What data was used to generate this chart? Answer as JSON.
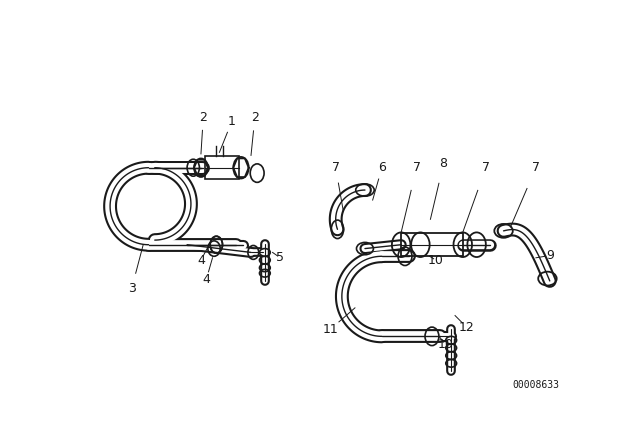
{
  "background_color": "#ffffff",
  "line_color": "#1a1a1a",
  "diagram_id": "00008633",
  "fig_width": 6.4,
  "fig_height": 4.48,
  "dpi": 100
}
